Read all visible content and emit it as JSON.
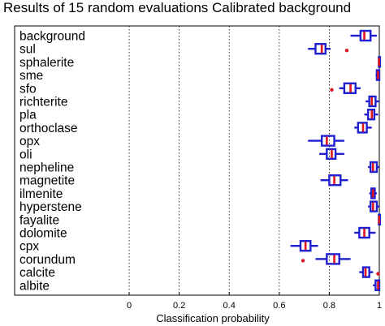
{
  "chart_data": {
    "type": "boxplot",
    "title": "Results of 15 random evaluations   Calibrated background",
    "xlabel": "Classification probability",
    "xlim": [
      0,
      1
    ],
    "xticks": [
      "0",
      "0.2",
      "0.4",
      "0.6",
      "0.8",
      "1"
    ],
    "orientation": "horizontal",
    "grid": "vertical dotted lines",
    "colors": {
      "box": "#1f1fd0",
      "median": "#e0141e",
      "outlier": "#e0141e",
      "frame": "#000000"
    },
    "categories": [
      "background",
      "sul",
      "sphalerite",
      "sme",
      "sfo",
      "richterite",
      "pla",
      "orthoclase",
      "opx",
      "oli",
      "nepheline",
      "magnetite",
      "ilmenite",
      "hyperstene",
      "fayalite",
      "dolomite",
      "cpx",
      "corundum",
      "calcite",
      "albite"
    ],
    "boxes": [
      {
        "whisker_low": 0.885,
        "q1": 0.925,
        "median": 0.94,
        "q3": 0.965,
        "whisker_high": 0.99,
        "outliers": []
      },
      {
        "whisker_low": 0.715,
        "q1": 0.745,
        "median": 0.77,
        "q3": 0.785,
        "whisker_high": 0.805,
        "outliers": [
          0.87
        ]
      },
      {
        "whisker_low": 0.997,
        "q1": 0.998,
        "median": 0.999,
        "q3": 1.0,
        "whisker_high": 1.0,
        "outliers": []
      },
      {
        "whisker_low": 0.985,
        "q1": 0.99,
        "median": 0.995,
        "q3": 1.0,
        "whisker_high": 1.0,
        "outliers": []
      },
      {
        "whisker_low": 0.84,
        "q1": 0.86,
        "median": 0.885,
        "q3": 0.905,
        "whisker_high": 0.925,
        "outliers": [
          0.81
        ]
      },
      {
        "whisker_low": 0.945,
        "q1": 0.96,
        "median": 0.97,
        "q3": 0.985,
        "whisker_high": 1.0,
        "outliers": []
      },
      {
        "whisker_low": 0.94,
        "q1": 0.955,
        "median": 0.97,
        "q3": 0.98,
        "whisker_high": 0.995,
        "outliers": []
      },
      {
        "whisker_low": 0.9,
        "q1": 0.915,
        "median": 0.935,
        "q3": 0.95,
        "whisker_high": 0.97,
        "outliers": []
      },
      {
        "whisker_low": 0.715,
        "q1": 0.77,
        "median": 0.79,
        "q3": 0.82,
        "whisker_high": 0.86,
        "outliers": []
      },
      {
        "whisker_low": 0.76,
        "q1": 0.79,
        "median": 0.81,
        "q3": 0.825,
        "whisker_high": 0.86,
        "outliers": []
      },
      {
        "whisker_low": 0.955,
        "q1": 0.965,
        "median": 0.975,
        "q3": 0.99,
        "whisker_high": 1.0,
        "outliers": []
      },
      {
        "whisker_low": 0.765,
        "q1": 0.8,
        "median": 0.82,
        "q3": 0.845,
        "whisker_high": 0.875,
        "outliers": []
      },
      {
        "whisker_low": 0.96,
        "q1": 0.968,
        "median": 0.975,
        "q3": 0.982,
        "whisker_high": 0.99,
        "outliers": []
      },
      {
        "whisker_low": 0.955,
        "q1": 0.965,
        "median": 0.975,
        "q3": 0.99,
        "whisker_high": 1.0,
        "outliers": []
      },
      {
        "whisker_low": 0.997,
        "q1": 0.998,
        "median": 0.999,
        "q3": 1.0,
        "whisker_high": 1.0,
        "outliers": []
      },
      {
        "whisker_low": 0.9,
        "q1": 0.92,
        "median": 0.94,
        "q3": 0.96,
        "whisker_high": 0.985,
        "outliers": []
      },
      {
        "whisker_low": 0.645,
        "q1": 0.685,
        "median": 0.705,
        "q3": 0.725,
        "whisker_high": 0.755,
        "outliers": []
      },
      {
        "whisker_low": 0.745,
        "q1": 0.79,
        "median": 0.82,
        "q3": 0.84,
        "whisker_high": 0.885,
        "outliers": [
          0.695
        ]
      },
      {
        "whisker_low": 0.92,
        "q1": 0.935,
        "median": 0.945,
        "q3": 0.96,
        "whisker_high": 0.975,
        "outliers": [
          0.995
        ]
      },
      {
        "whisker_low": 0.975,
        "q1": 0.985,
        "median": 0.995,
        "q3": 1.0,
        "whisker_high": 1.0,
        "outliers": []
      }
    ]
  }
}
